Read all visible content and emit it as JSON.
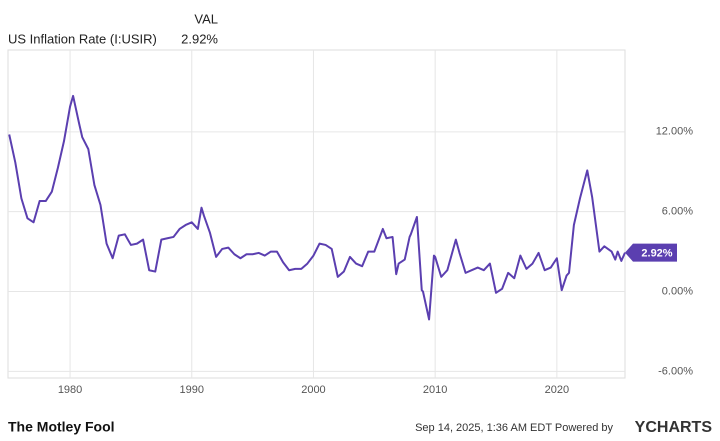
{
  "header": {
    "series_label": "US Inflation Rate (I:USIR)",
    "column_label": "VAL",
    "value": "2.92%"
  },
  "chart_data": {
    "type": "line",
    "x": [
      1975.0,
      1975.5,
      1976.0,
      1976.5,
      1977.0,
      1977.5,
      1978.0,
      1978.5,
      1979.0,
      1979.5,
      1980.0,
      1980.25,
      1980.75,
      1981.0,
      1981.5,
      1982.0,
      1982.5,
      1983.0,
      1983.5,
      1984.0,
      1984.5,
      1985.0,
      1985.5,
      1986.0,
      1986.5,
      1987.0,
      1987.5,
      1988.0,
      1988.5,
      1989.0,
      1989.5,
      1990.0,
      1990.5,
      1990.8,
      1991.0,
      1991.5,
      1992.0,
      1992.5,
      1993.0,
      1993.5,
      1994.0,
      1994.5,
      1995.0,
      1995.5,
      1996.0,
      1996.5,
      1997.0,
      1997.5,
      1998.0,
      1998.5,
      1999.0,
      1999.5,
      2000.0,
      2000.5,
      2001.0,
      2001.5,
      2002.0,
      2002.5,
      2003.0,
      2003.5,
      2004.0,
      2004.5,
      2005.0,
      2005.7,
      2006.0,
      2006.5,
      2006.8,
      2007.0,
      2007.5,
      2007.9,
      2008.0,
      2008.5,
      2008.9,
      2009.0,
      2009.5,
      2009.9,
      2010.0,
      2010.5,
      2011.0,
      2011.7,
      2012.0,
      2012.5,
      2013.0,
      2013.5,
      2014.0,
      2014.5,
      2015.0,
      2015.5,
      2016.0,
      2016.5,
      2017.0,
      2017.5,
      2018.0,
      2018.5,
      2019.0,
      2019.5,
      2020.0,
      2020.4,
      2020.8,
      2021.0,
      2021.4,
      2021.9,
      2022.5,
      2022.9,
      2023.5,
      2023.9,
      2024.5,
      2024.8,
      2025.0,
      2025.3,
      2025.6
    ],
    "series": [
      {
        "name": "US Inflation Rate (I:USIR)",
        "color": "#5b3fb0",
        "values": [
          11.8,
          9.7,
          7.0,
          5.5,
          5.2,
          6.8,
          6.8,
          7.5,
          9.3,
          11.3,
          13.9,
          14.7,
          12.6,
          11.6,
          10.7,
          8.0,
          6.5,
          3.6,
          2.5,
          4.2,
          4.3,
          3.5,
          3.6,
          3.9,
          1.6,
          1.5,
          3.9,
          4.0,
          4.1,
          4.7,
          5.0,
          5.2,
          4.7,
          6.3,
          5.7,
          4.4,
          2.6,
          3.2,
          3.3,
          2.8,
          2.5,
          2.8,
          2.8,
          2.9,
          2.7,
          3.0,
          3.0,
          2.2,
          1.6,
          1.7,
          1.7,
          2.1,
          2.7,
          3.6,
          3.5,
          3.2,
          1.1,
          1.5,
          2.6,
          2.1,
          1.9,
          3.0,
          3.0,
          4.7,
          4.0,
          4.1,
          1.3,
          2.1,
          2.4,
          4.1,
          4.3,
          5.6,
          0.1,
          0.0,
          -2.1,
          2.7,
          2.6,
          1.1,
          1.6,
          3.9,
          2.9,
          1.4,
          1.6,
          1.8,
          1.6,
          2.1,
          -0.1,
          0.2,
          1.4,
          1.0,
          2.7,
          1.7,
          2.1,
          2.9,
          1.6,
          1.8,
          2.5,
          0.1,
          1.2,
          1.4,
          5.0,
          7.0,
          9.1,
          7.1,
          3.0,
          3.4,
          3.0,
          2.4,
          3.0,
          2.3,
          2.92
        ]
      }
    ],
    "xlim": [
      1974.9,
      2025.6
    ],
    "xticks": [
      1980,
      1990,
      2000,
      2010,
      2020
    ],
    "ylim": [
      -6.5,
      18.15
    ],
    "yticks": [
      {
        "value": -6,
        "label": "-6.00%"
      },
      {
        "value": 0,
        "label": "0.00%"
      },
      {
        "value": 6,
        "label": "6.00%"
      },
      {
        "value": 12,
        "label": "12.00%"
      }
    ],
    "grid": true
  },
  "footer": {
    "brand": "The Motley Fool",
    "timestamp": "Sep 14, 2025, 1:36 AM EDT Powered by",
    "provider": "YCHARTS"
  }
}
